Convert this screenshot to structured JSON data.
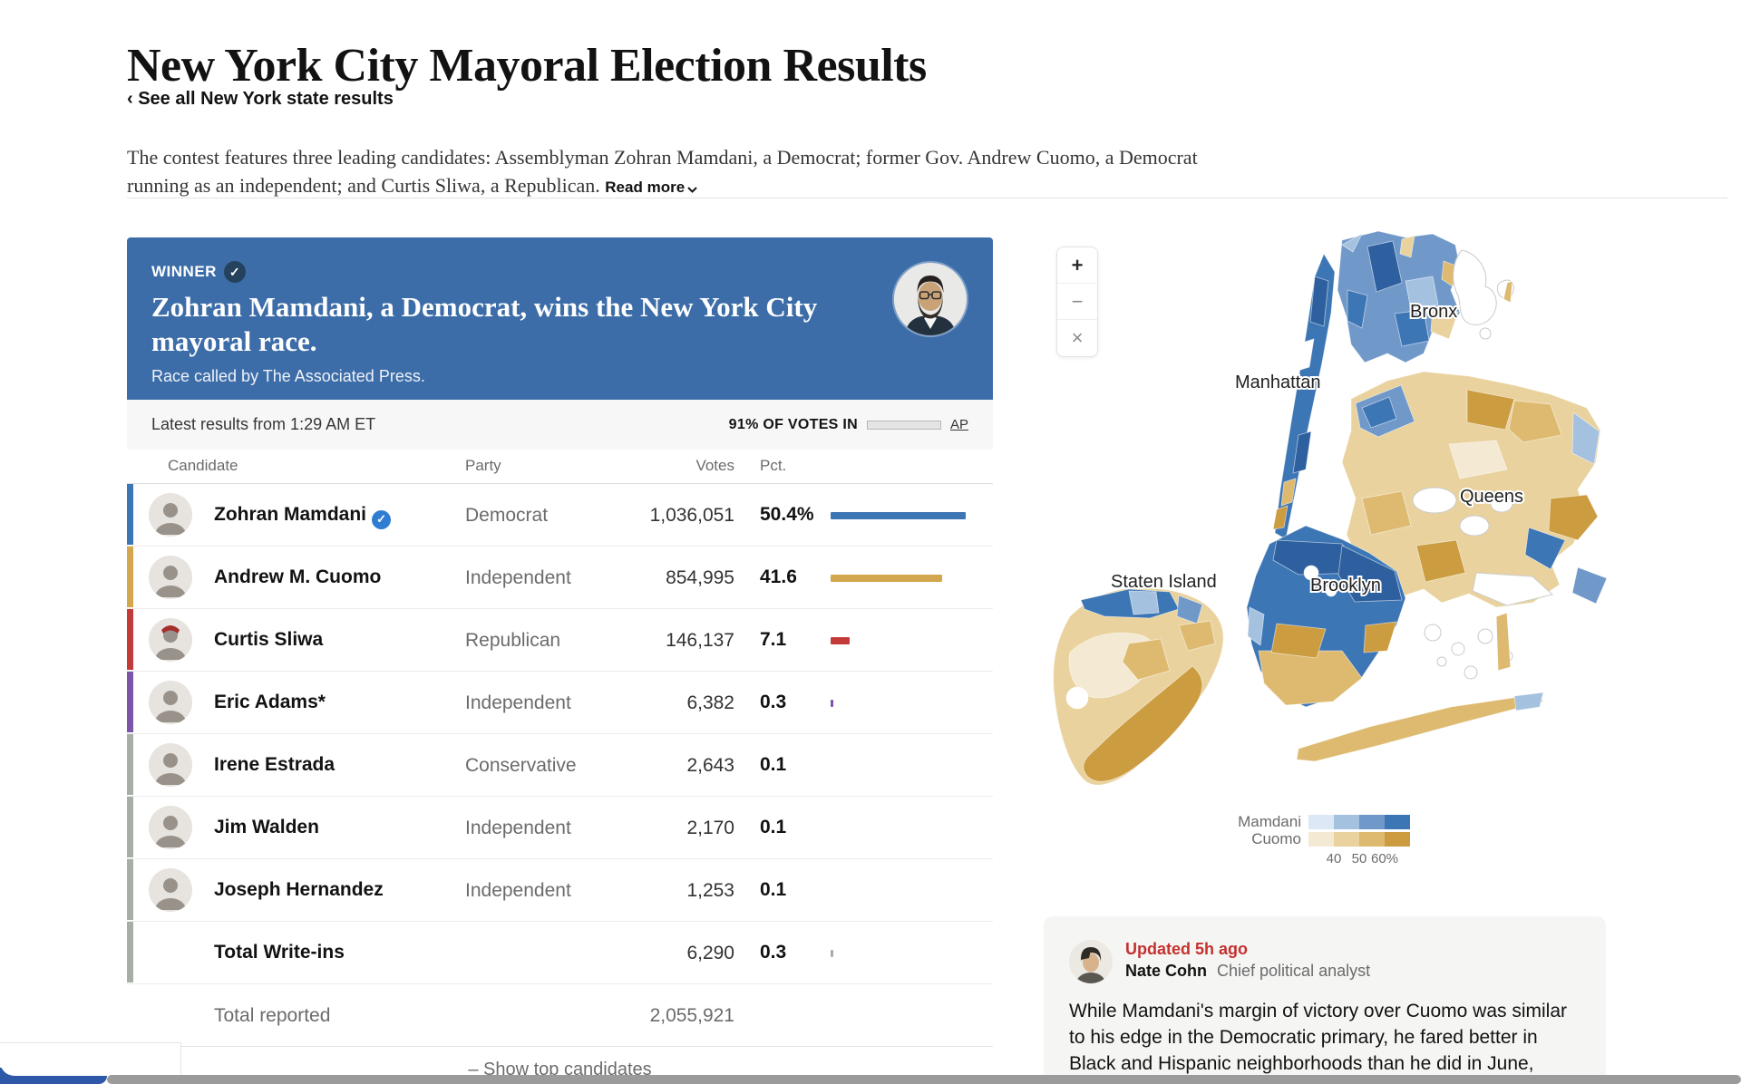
{
  "page": {
    "title": "New York City Mayoral Election Results",
    "back_link": "‹ See all New York state results",
    "intro": "The contest features three leading candidates: Assemblyman Zohran Mamdani, a Democrat; former Gov. Andrew Cuomo, a Democrat running as an independent; and Curtis Sliwa, a Republican.",
    "read_more": "Read more"
  },
  "winner_banner": {
    "label": "WINNER",
    "check": "✓",
    "headline": "Zohran Mamdani, a Democrat, wins the New York City mayoral race.",
    "subtext": "Race called by The Associated Press.",
    "bg_color": "#3d6da8"
  },
  "status": {
    "latest": "Latest results from 1:29 AM ET",
    "votes_in": "91% OF VOTES IN",
    "votes_in_pct": 91,
    "source": "AP"
  },
  "table": {
    "headers": {
      "candidate": "Candidate",
      "party": "Party",
      "votes": "Votes",
      "pct": "Pct."
    },
    "rows": [
      {
        "name": "Zohran Mamdani",
        "winner": true,
        "party": "Democrat",
        "votes": "1,036,051",
        "pct": "50.4%",
        "pct_value": 50.4,
        "color": "#3d76b4"
      },
      {
        "name": "Andrew M. Cuomo",
        "winner": false,
        "party": "Independent",
        "votes": "854,995",
        "pct": "41.6",
        "pct_value": 41.6,
        "color": "#d2a74e"
      },
      {
        "name": "Curtis Sliwa",
        "winner": false,
        "party": "Republican",
        "votes": "146,137",
        "pct": "7.1",
        "pct_value": 7.1,
        "color": "#c23b38",
        "hat": true
      },
      {
        "name": "Eric Adams*",
        "winner": false,
        "party": "Independent",
        "votes": "6,382",
        "pct": "0.3",
        "pct_value": 0.3,
        "color": "#7c55a8"
      },
      {
        "name": "Irene Estrada",
        "winner": false,
        "party": "Conservative",
        "votes": "2,643",
        "pct": "0.1",
        "pct_value": 0.1,
        "color": "#a8ada8"
      },
      {
        "name": "Jim Walden",
        "winner": false,
        "party": "Independent",
        "votes": "2,170",
        "pct": "0.1",
        "pct_value": 0.1,
        "color": "#a8ada8"
      },
      {
        "name": "Joseph Hernandez",
        "winner": false,
        "party": "Independent",
        "votes": "1,253",
        "pct": "0.1",
        "pct_value": 0.1,
        "color": "#a8ada8"
      },
      {
        "name": "Total Write-ins",
        "winner": false,
        "party": "",
        "votes": "6,290",
        "pct": "0.3",
        "pct_value": 0.3,
        "color": "#a8ada8",
        "no_avatar": true
      }
    ],
    "total_label": "Total reported",
    "total_votes": "2,055,921",
    "footer_action": "– Show top candidates"
  },
  "map": {
    "controls": {
      "zoom_in": "+",
      "zoom_out": "−",
      "close": "×"
    },
    "labels": {
      "bronx": "Bronx",
      "manhattan": "Manhattan",
      "queens": "Queens",
      "brooklyn": "Brooklyn",
      "staten_island": "Staten Island"
    },
    "legend": {
      "rows": [
        {
          "label": "Mamdani",
          "colors": [
            "#dce8f5",
            "#a5c1e0",
            "#7098c9",
            "#3d76b4"
          ]
        },
        {
          "label": "Cuomo",
          "colors": [
            "#f4e9d2",
            "#e9d29d",
            "#ddba70",
            "#cc9c41"
          ]
        }
      ],
      "ticks": [
        "40",
        "50",
        "60%"
      ]
    }
  },
  "analyst": {
    "updated": "Updated 5h ago",
    "name": "Nate Cohn",
    "role": "Chief political analyst",
    "text": "While Mamdani's margin of victory over Cuomo was similar to his edge in the Democratic primary, he fared better in Black and Hispanic neighborhoods than he did in June, including flipping the Bronx"
  }
}
